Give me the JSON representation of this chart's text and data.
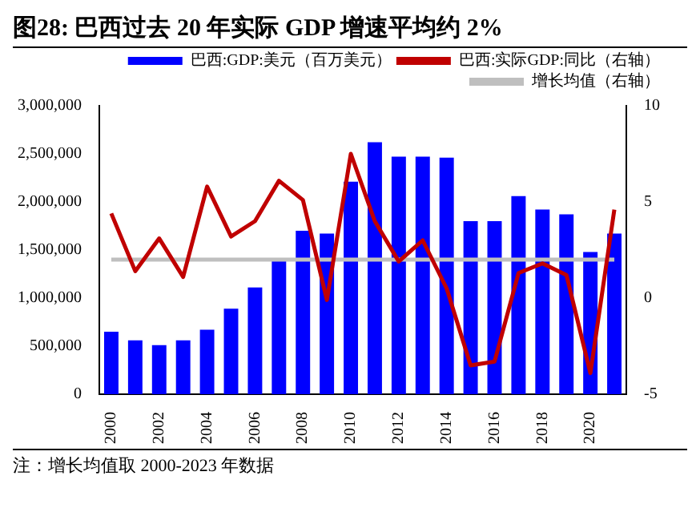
{
  "chart_data": {
    "type": "bar",
    "title": "图28:  巴西过去 20 年实际 GDP 增速平均约 2%",
    "categories": [
      "2000",
      null,
      "2002",
      null,
      "2004",
      null,
      "2006",
      null,
      "2008",
      null,
      "2010",
      null,
      "2012",
      null,
      "2014",
      null,
      "2016",
      null,
      "2018",
      null,
      "2020",
      null
    ],
    "series": [
      {
        "name": "巴西:GDP:美元（百万美元）",
        "color": "#0000ff",
        "values": [
          650000,
          560000,
          510000,
          560000,
          670000,
          890000,
          1110000,
          1400000,
          1700000,
          1670000,
          2210000,
          2620000,
          2470000,
          2470000,
          2460000,
          1800000,
          1800000,
          2060000,
          1920000,
          1870000,
          1480000,
          1670000
        ]
      },
      {
        "name": "巴西:实际GDP:同比（右轴）",
        "type": "line",
        "axis": "y2",
        "color": "#c00000",
        "values": [
          4.4,
          1.4,
          3.1,
          1.1,
          5.8,
          3.2,
          4.0,
          6.1,
          5.1,
          -0.1,
          7.5,
          4.0,
          1.9,
          3.0,
          0.5,
          -3.5,
          -3.3,
          1.3,
          1.8,
          1.2,
          -3.9,
          4.6
        ]
      },
      {
        "name": "增长均值（右轴）",
        "type": "line",
        "axis": "y2",
        "color": "#bfbfbf",
        "values": [
          2,
          2,
          2,
          2,
          2,
          2,
          2,
          2,
          2,
          2,
          2,
          2,
          2,
          2,
          2,
          2,
          2,
          2,
          2,
          2,
          2,
          2
        ]
      }
    ],
    "ylim": [
      0,
      3000000
    ],
    "yticks": [
      {
        "value": 0,
        "label": "0"
      },
      {
        "value": 500000,
        "label": "500,000"
      },
      {
        "value": 1000000,
        "label": "1,000,000"
      },
      {
        "value": 1500000,
        "label": "1,500,000"
      },
      {
        "value": 2000000,
        "label": "2,000,000"
      },
      {
        "value": 2500000,
        "label": "2,500,000"
      },
      {
        "value": 3000000,
        "label": "3,000,000"
      }
    ],
    "y2lim": [
      -5,
      10
    ],
    "y2ticks": [
      -5,
      0,
      5,
      10
    ],
    "legend": "top right",
    "grid": false,
    "marker": "none",
    "annotations": [
      "注：增长均值取 2000-2023 年数据"
    ]
  }
}
